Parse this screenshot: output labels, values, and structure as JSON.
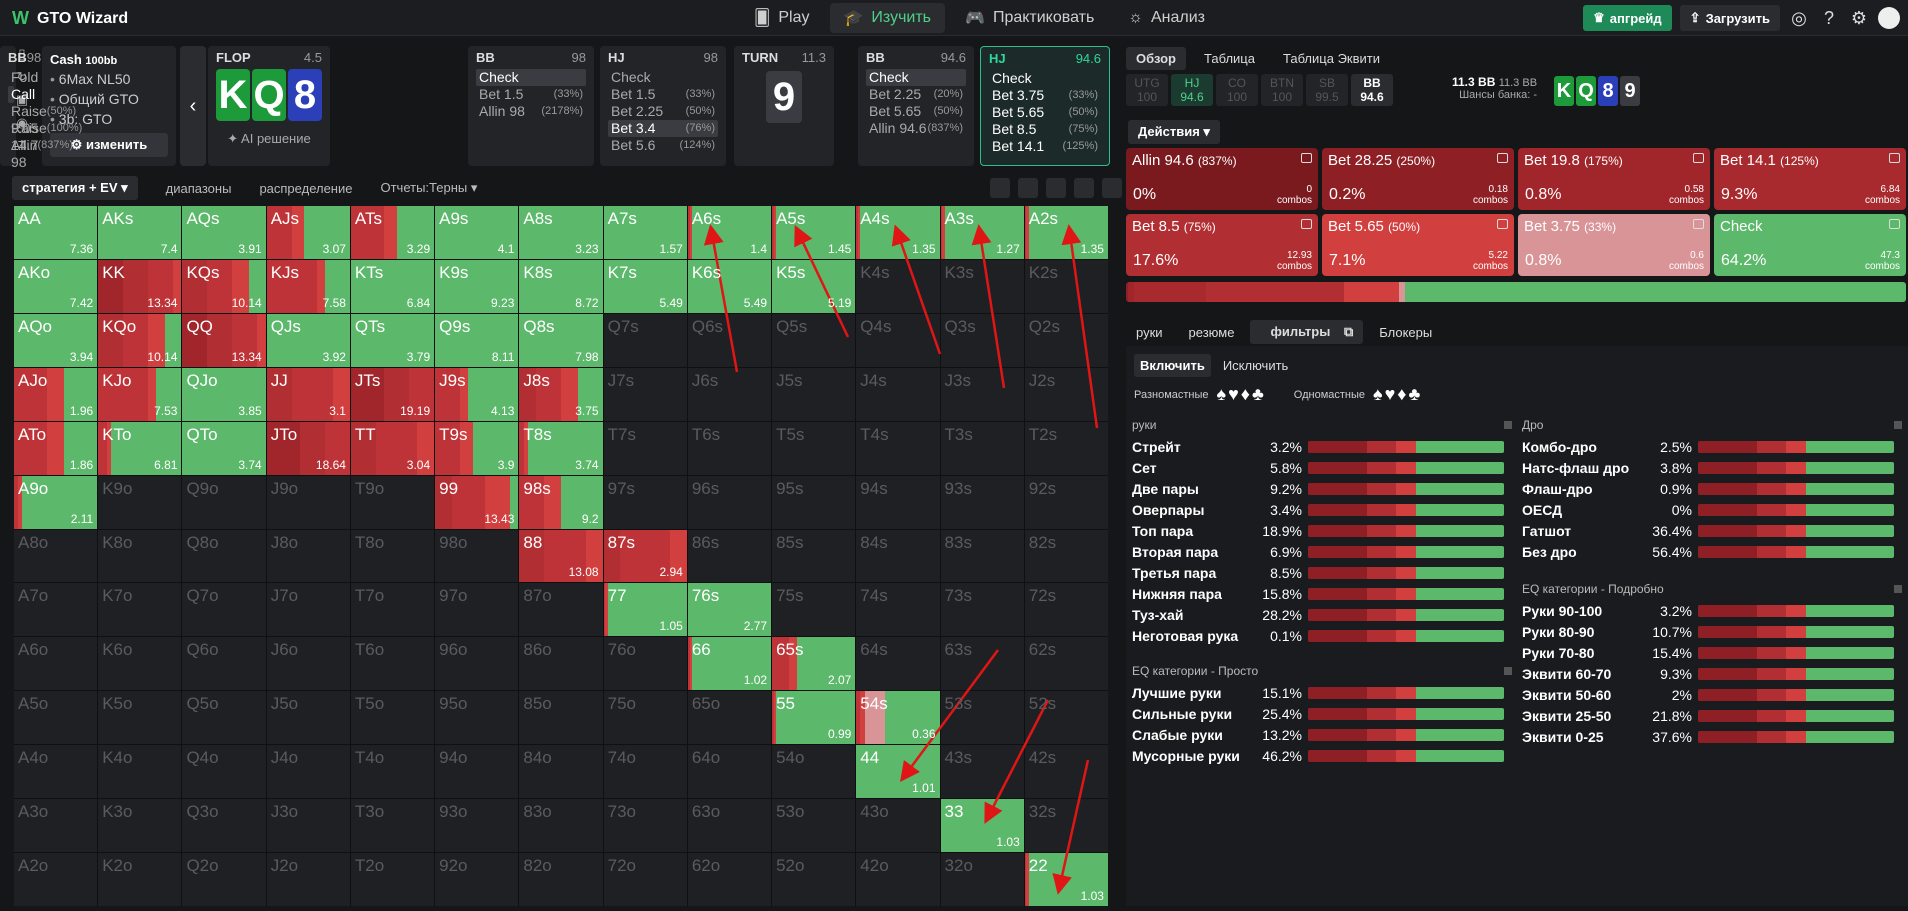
{
  "app": {
    "title": "GTO Wizard"
  },
  "nav": {
    "items": [
      "Play",
      "Изучить",
      "Практиковать",
      "Анализ"
    ]
  },
  "topright": {
    "upgrade": "апгрейд",
    "load": "Загрузить"
  },
  "info": {
    "title": "Cash",
    "stack": "100bb",
    "lines": [
      "6Max NL50",
      "Общий GTO",
      "3b: GTO"
    ],
    "change": "изменить",
    "ai": "AI решение"
  },
  "cards": [
    {
      "pos": "FLOP",
      "val": "4.5"
    },
    {
      "pos": "BB",
      "val": "98",
      "rows": [
        [
          "Check",
          ""
        ],
        [
          "Bet 1.5",
          "(33%)"
        ],
        [
          "Allin 98",
          "(2178%)"
        ]
      ],
      "sel": 0
    },
    {
      "pos": "HJ",
      "val": "98",
      "rows": [
        [
          "Check",
          ""
        ],
        [
          "Bet 1.5",
          "(33%)"
        ],
        [
          "Bet 2.25",
          "(50%)"
        ],
        [
          "Bet 3.4",
          "(76%)"
        ],
        [
          "Bet 5.6",
          "(124%)"
        ]
      ],
      "sel": 3
    },
    {
      "pos": "BB",
      "val": "98",
      "rows": [
        [
          "Fold",
          ""
        ],
        [
          "Call",
          ""
        ],
        [
          "Raise 9.05",
          "(50%)"
        ],
        [
          "Raise 14.7",
          "(100%)"
        ],
        [
          "Allin 98",
          "(837%)"
        ]
      ],
      "sel": 1
    },
    {
      "pos": "TURN",
      "val": "11.3"
    },
    {
      "pos": "BB",
      "val": "94.6",
      "rows": [
        [
          "Check",
          ""
        ],
        [
          "Bet 2.25",
          "(20%)"
        ],
        [
          "Bet 5.65",
          "(50%)"
        ],
        [
          "Allin 94.6",
          "(837%)"
        ]
      ],
      "sel": 0
    },
    {
      "pos": "HJ",
      "val": "94.6",
      "rows": [
        [
          "Check",
          ""
        ],
        [
          "Bet 3.75",
          "(33%)"
        ],
        [
          "Bet 5.65",
          "(50%)"
        ],
        [
          "Bet 8.5",
          "(75%)"
        ],
        [
          "Bet 14.1",
          "(125%)"
        ]
      ],
      "sel": -1
    }
  ],
  "flop_cards": [
    "K",
    "Q",
    "8"
  ],
  "turn_card": "9",
  "left_tabs": [
    "стратегия + EV",
    "диапазоны",
    "распределение",
    "Отчеты:Терны"
  ],
  "grid": [
    [
      "AA",
      "7.36"
    ],
    [
      "AKs",
      "7.4"
    ],
    [
      "AQs",
      "3.91"
    ],
    [
      "AJs",
      "3.07"
    ],
    [
      "ATs",
      "3.29"
    ],
    [
      "A9s",
      "4.1"
    ],
    [
      "A8s",
      "3.23"
    ],
    [
      "A7s",
      "1.57"
    ],
    [
      "A6s",
      "1.4"
    ],
    [
      "A5s",
      "1.45"
    ],
    [
      "A4s",
      "1.35"
    ],
    [
      "A3s",
      "1.27"
    ],
    [
      "A2s",
      "1.35"
    ],
    [
      "AKo",
      "7.42"
    ],
    [
      "KK",
      "13.34"
    ],
    [
      "KQs",
      "10.14"
    ],
    [
      "KJs",
      "7.58"
    ],
    [
      "KTs",
      "6.84"
    ],
    [
      "K9s",
      "9.23"
    ],
    [
      "K8s",
      "8.72"
    ],
    [
      "K7s",
      "5.49"
    ],
    [
      "K6s",
      "5.49"
    ],
    [
      "K5s",
      "5.19"
    ],
    [
      "K4s",
      ""
    ],
    [
      "K3s",
      ""
    ],
    [
      "K2s",
      ""
    ],
    [
      "AQo",
      "3.94"
    ],
    [
      "KQo",
      "10.14"
    ],
    [
      "QQ",
      "13.34"
    ],
    [
      "QJs",
      "3.92"
    ],
    [
      "QTs",
      "3.79"
    ],
    [
      "Q9s",
      "8.11"
    ],
    [
      "Q8s",
      "7.98"
    ],
    [
      "Q7s",
      ""
    ],
    [
      "Q6s",
      ""
    ],
    [
      "Q5s",
      ""
    ],
    [
      "Q4s",
      ""
    ],
    [
      "Q3s",
      ""
    ],
    [
      "Q2s",
      ""
    ],
    [
      "AJo",
      "1.96"
    ],
    [
      "KJo",
      "7.53"
    ],
    [
      "QJo",
      "3.85"
    ],
    [
      "JJ",
      "3.1"
    ],
    [
      "JTs",
      "19.19"
    ],
    [
      "J9s",
      "4.13"
    ],
    [
      "J8s",
      "3.75"
    ],
    [
      "J7s",
      ""
    ],
    [
      "J6s",
      ""
    ],
    [
      "J5s",
      ""
    ],
    [
      "J4s",
      ""
    ],
    [
      "J3s",
      ""
    ],
    [
      "J2s",
      ""
    ],
    [
      "ATo",
      "1.86"
    ],
    [
      "KTo",
      "6.81"
    ],
    [
      "QTo",
      "3.74"
    ],
    [
      "JTo",
      "18.64"
    ],
    [
      "TT",
      "3.04"
    ],
    [
      "T9s",
      "3.9"
    ],
    [
      "T8s",
      "3.74"
    ],
    [
      "T7s",
      ""
    ],
    [
      "T6s",
      ""
    ],
    [
      "T5s",
      ""
    ],
    [
      "T4s",
      ""
    ],
    [
      "T3s",
      ""
    ],
    [
      "T2s",
      ""
    ],
    [
      "A9o",
      "2.11"
    ],
    [
      "K9o",
      ""
    ],
    [
      "Q9o",
      ""
    ],
    [
      "J9o",
      ""
    ],
    [
      "T9o",
      ""
    ],
    [
      "99",
      "13.43"
    ],
    [
      "98s",
      "9.2"
    ],
    [
      "97s",
      ""
    ],
    [
      "96s",
      ""
    ],
    [
      "95s",
      ""
    ],
    [
      "94s",
      ""
    ],
    [
      "93s",
      ""
    ],
    [
      "92s",
      ""
    ],
    [
      "A8o",
      ""
    ],
    [
      "K8o",
      ""
    ],
    [
      "Q8o",
      ""
    ],
    [
      "J8o",
      ""
    ],
    [
      "T8o",
      ""
    ],
    [
      "98o",
      ""
    ],
    [
      "88",
      "13.08"
    ],
    [
      "87s",
      "2.94"
    ],
    [
      "86s",
      ""
    ],
    [
      "85s",
      ""
    ],
    [
      "84s",
      ""
    ],
    [
      "83s",
      ""
    ],
    [
      "82s",
      ""
    ],
    [
      "A7o",
      ""
    ],
    [
      "K7o",
      ""
    ],
    [
      "Q7o",
      ""
    ],
    [
      "J7o",
      ""
    ],
    [
      "T7o",
      ""
    ],
    [
      "97o",
      ""
    ],
    [
      "87o",
      ""
    ],
    [
      "77",
      "1.05"
    ],
    [
      "76s",
      "2.77"
    ],
    [
      "75s",
      ""
    ],
    [
      "74s",
      ""
    ],
    [
      "73s",
      ""
    ],
    [
      "72s",
      ""
    ],
    [
      "A6o",
      ""
    ],
    [
      "K6o",
      ""
    ],
    [
      "Q6o",
      ""
    ],
    [
      "J6o",
      ""
    ],
    [
      "T6o",
      ""
    ],
    [
      "96o",
      ""
    ],
    [
      "86o",
      ""
    ],
    [
      "76o",
      ""
    ],
    [
      "66",
      "1.02"
    ],
    [
      "65s",
      "2.07"
    ],
    [
      "64s",
      ""
    ],
    [
      "63s",
      ""
    ],
    [
      "62s",
      ""
    ],
    [
      "A5o",
      ""
    ],
    [
      "K5o",
      ""
    ],
    [
      "Q5o",
      ""
    ],
    [
      "J5o",
      ""
    ],
    [
      "T5o",
      ""
    ],
    [
      "95o",
      ""
    ],
    [
      "85o",
      ""
    ],
    [
      "75o",
      ""
    ],
    [
      "65o",
      ""
    ],
    [
      "55",
      "0.99"
    ],
    [
      "54s",
      "0.36"
    ],
    [
      "53s",
      ""
    ],
    [
      "52s",
      ""
    ],
    [
      "A4o",
      ""
    ],
    [
      "K4o",
      ""
    ],
    [
      "Q4o",
      ""
    ],
    [
      "J4o",
      ""
    ],
    [
      "T4o",
      ""
    ],
    [
      "94o",
      ""
    ],
    [
      "84o",
      ""
    ],
    [
      "74o",
      ""
    ],
    [
      "64o",
      ""
    ],
    [
      "54o",
      ""
    ],
    [
      "44",
      "1.01"
    ],
    [
      "43s",
      ""
    ],
    [
      "42s",
      ""
    ],
    [
      "A3o",
      ""
    ],
    [
      "K3o",
      ""
    ],
    [
      "Q3o",
      ""
    ],
    [
      "J3o",
      ""
    ],
    [
      "T3o",
      ""
    ],
    [
      "93o",
      ""
    ],
    [
      "83o",
      ""
    ],
    [
      "73o",
      ""
    ],
    [
      "63o",
      ""
    ],
    [
      "53o",
      ""
    ],
    [
      "43o",
      ""
    ],
    [
      "33",
      "1.03"
    ],
    [
      "32s",
      ""
    ],
    [
      "A2o",
      ""
    ],
    [
      "K2o",
      ""
    ],
    [
      "Q2o",
      ""
    ],
    [
      "J2o",
      ""
    ],
    [
      "T2o",
      ""
    ],
    [
      "92o",
      ""
    ],
    [
      "82o",
      ""
    ],
    [
      "72o",
      ""
    ],
    [
      "62o",
      ""
    ],
    [
      "52o",
      ""
    ],
    [
      "42o",
      ""
    ],
    [
      "32o",
      ""
    ],
    [
      "22",
      "1.03"
    ]
  ],
  "cell_mix": {
    "AA": [
      0,
      0,
      0,
      0,
      0,
      0,
      0,
      1
    ],
    "AKs": [
      0,
      0,
      0,
      0,
      0,
      0,
      0,
      1
    ],
    "AQs": [
      0,
      0,
      0,
      0,
      0,
      0,
      0,
      1
    ],
    "AJs": [
      0,
      0,
      0,
      0,
      0.3,
      0.15,
      0,
      0.55
    ],
    "ATs": [
      0,
      0,
      0,
      0,
      0.4,
      0.15,
      0,
      0.45
    ],
    "A9s": [
      0,
      0,
      0,
      0,
      0,
      0,
      0,
      1
    ],
    "A8s": [
      0,
      0,
      0,
      0,
      0,
      0,
      0,
      1
    ],
    "A7s": [
      0,
      0,
      0,
      0,
      0,
      0,
      0,
      1
    ],
    "A6s": [
      0,
      0,
      0,
      0,
      0.02,
      0.03,
      0,
      0.95
    ],
    "A5s": [
      0,
      0,
      0,
      0,
      0.02,
      0.03,
      0,
      0.95
    ],
    "A4s": [
      0,
      0,
      0,
      0,
      0.02,
      0.03,
      0,
      0.95
    ],
    "A3s": [
      0,
      0,
      0,
      0,
      0.02,
      0.03,
      0,
      0.95
    ],
    "A2s": [
      0,
      0,
      0,
      0,
      0.02,
      0.03,
      0,
      0.95
    ],
    "AKo": [
      0,
      0,
      0,
      0,
      0,
      0,
      0,
      1
    ],
    "KK": [
      0,
      0,
      0.3,
      0.3,
      0.3,
      0.1,
      0,
      0
    ],
    "KQs": [
      0,
      0,
      0,
      0.3,
      0.3,
      0.2,
      0,
      0.2
    ],
    "KJs": [
      0,
      0,
      0,
      0,
      0.6,
      0.1,
      0,
      0.3
    ],
    "KTs": [
      0,
      0,
      0,
      0,
      0,
      0,
      0,
      1
    ],
    "K9s": [
      0,
      0,
      0,
      0,
      0,
      0,
      0,
      1
    ],
    "K8s": [
      0,
      0,
      0,
      0,
      0,
      0,
      0,
      1
    ],
    "K7s": [
      0,
      0,
      0,
      0,
      0,
      0,
      0,
      1
    ],
    "K6s": [
      0,
      0,
      0,
      0,
      0,
      0,
      0,
      1
    ],
    "K5s": [
      0,
      0,
      0,
      0,
      0,
      0,
      0,
      1
    ],
    "AQo": [
      0,
      0,
      0,
      0,
      0,
      0,
      0,
      1
    ],
    "KQo": [
      0,
      0,
      0,
      0.3,
      0.3,
      0.2,
      0,
      0.2
    ],
    "QQ": [
      0,
      0,
      0.3,
      0.3,
      0.3,
      0.1,
      0,
      0
    ],
    "QJs": [
      0,
      0,
      0,
      0,
      0,
      0,
      0,
      1
    ],
    "QTs": [
      0,
      0,
      0,
      0,
      0,
      0,
      0,
      1
    ],
    "Q9s": [
      0,
      0,
      0,
      0,
      0,
      0,
      0,
      1
    ],
    "Q8s": [
      0,
      0,
      0,
      0,
      0,
      0,
      0,
      1
    ],
    "AJo": [
      0,
      0,
      0,
      0,
      0.4,
      0.2,
      0,
      0.4
    ],
    "KJo": [
      0,
      0,
      0,
      0,
      0.6,
      0.1,
      0,
      0.3
    ],
    "QJo": [
      0,
      0,
      0,
      0,
      0,
      0,
      0,
      1
    ],
    "JJ": [
      0,
      0,
      0,
      0.3,
      0.5,
      0.2,
      0,
      0
    ],
    "JTs": [
      0,
      0,
      0.4,
      0.3,
      0.3,
      0,
      0,
      0
    ],
    "J9s": [
      0,
      0,
      0,
      0,
      0.3,
      0.1,
      0,
      0.6
    ],
    "J8s": [
      0,
      0,
      0,
      0.2,
      0.3,
      0.2,
      0,
      0.3
    ],
    "ATo": [
      0,
      0,
      0,
      0,
      0.4,
      0.2,
      0,
      0.4
    ],
    "KTo": [
      0,
      0,
      0,
      0,
      0.1,
      0.05,
      0,
      0.85
    ],
    "QTo": [
      0,
      0,
      0,
      0,
      0,
      0,
      0,
      1
    ],
    "JTo": [
      0,
      0,
      0.4,
      0.3,
      0.3,
      0,
      0,
      0
    ],
    "TT": [
      0,
      0,
      0,
      0.3,
      0.5,
      0.2,
      0,
      0
    ],
    "T9s": [
      0,
      0,
      0,
      0,
      0.3,
      0.15,
      0,
      0.55
    ],
    "T8s": [
      0,
      0,
      0,
      0,
      0.05,
      0.05,
      0,
      0.9
    ],
    "A9o": [
      0,
      0,
      0,
      0,
      0.05,
      0.05,
      0,
      0.9
    ],
    "99": [
      0,
      0,
      0,
      0.2,
      0.4,
      0.3,
      0,
      0.1
    ],
    "98s": [
      0,
      0,
      0,
      0,
      0.3,
      0.2,
      0,
      0.5
    ],
    "88": [
      0,
      0,
      0,
      0.3,
      0.5,
      0.2,
      0,
      0
    ],
    "87s": [
      0,
      0,
      0,
      0.2,
      0.6,
      0.2,
      0,
      0
    ],
    "77": [
      0,
      0,
      0,
      0,
      0.02,
      0.03,
      0,
      0.95
    ],
    "76s": [
      0,
      0,
      0,
      0,
      0,
      0,
      0,
      1
    ],
    "66": [
      0,
      0,
      0,
      0,
      0.02,
      0.03,
      0,
      0.95
    ],
    "65s": [
      0,
      0,
      0,
      0,
      0.2,
      0.1,
      0,
      0.7
    ],
    "55": [
      0,
      0,
      0,
      0,
      0.02,
      0.03,
      0,
      0.95
    ],
    "54s": [
      0,
      0,
      0,
      0,
      0.05,
      0.05,
      0.25,
      0.65
    ],
    "44": [
      0,
      0,
      0,
      0,
      0,
      0,
      0,
      1
    ],
    "33": [
      0,
      0,
      0,
      0,
      0,
      0,
      0,
      1
    ],
    "22": [
      0,
      0,
      0,
      0,
      0.02,
      0.03,
      0,
      0.95
    ]
  },
  "colors": {
    "allin": "#7a1a1f",
    "b28": "#8e1f24",
    "b19": "#a0262b",
    "b14": "#b12e32",
    "b85": "#bd3337",
    "b565": "#d13f3f",
    "b375": "#d99497",
    "check": "#5cb86a",
    "empty": "#1f2023"
  },
  "right": {
    "tabs": [
      "Обзор",
      "Таблица",
      "Таблица Эквити"
    ],
    "positions": [
      [
        "UTG",
        "100"
      ],
      [
        "HJ",
        "94.6"
      ],
      [
        "CO",
        "100"
      ],
      [
        "BTN",
        "100"
      ],
      [
        "SB",
        "99.5"
      ],
      [
        "BB",
        "94.6"
      ]
    ],
    "pot": "11.3 BB",
    "pot2": "11.3 BB",
    "pot_label": "Шансы банка: -",
    "board": [
      "K",
      "Q",
      "8",
      "9"
    ],
    "actions_label": "Действия",
    "actions": [
      {
        "name": "Allin 94.6",
        "pct": "(837%)",
        "freq": "0%",
        "combos": "0",
        "color": "#7a1a1f"
      },
      {
        "name": "Bet 28.25",
        "pct": "(250%)",
        "freq": "0.2%",
        "combos": "0.18",
        "color": "#8e1f24"
      },
      {
        "name": "Bet 19.8",
        "pct": "(175%)",
        "freq": "0.8%",
        "combos": "0.58",
        "color": "#a0262b"
      },
      {
        "name": "Bet 14.1",
        "pct": "(125%)",
        "freq": "9.3%",
        "combos": "6.84",
        "color": "#a82a2e"
      },
      {
        "name": "Bet 8.5",
        "pct": "(75%)",
        "freq": "17.6%",
        "combos": "12.93",
        "color": "#b12e32"
      },
      {
        "name": "Bet 5.65",
        "pct": "(50%)",
        "freq": "7.1%",
        "combos": "5.22",
        "color": "#d13f3f"
      },
      {
        "name": "Bet 3.75",
        "pct": "(33%)",
        "freq": "0.8%",
        "combos": "0.6",
        "color": "#d99497"
      },
      {
        "name": "Check",
        "pct": "",
        "freq": "64.2%",
        "combos": "47.3",
        "color": "#5cb86a"
      }
    ],
    "combos_label": "combos",
    "subtabs": [
      "руки",
      "резюме",
      "фильтры",
      "Блокеры"
    ],
    "include": "Включить",
    "exclude": "Исключить",
    "suit_multi": "Разномастные",
    "suit_single": "Одномастные",
    "hands_title": "руки",
    "hands": [
      [
        "Стрейт",
        "3.2%"
      ],
      [
        "Сет",
        "5.8%"
      ],
      [
        "Две пары",
        "9.2%"
      ],
      [
        "Оверпары",
        "3.4%"
      ],
      [
        "Топ пара",
        "18.9%"
      ],
      [
        "Вторая пара",
        "6.9%"
      ],
      [
        "Третья пара",
        "8.5%"
      ],
      [
        "Нижняя пара",
        "15.8%"
      ],
      [
        "Туз-хай",
        "28.2%"
      ],
      [
        "Неготовая рука",
        "0.1%"
      ]
    ],
    "eq_simple_title": "EQ категории - Просто",
    "eq_simple": [
      [
        "Лучшие руки",
        "15.1%"
      ],
      [
        "Сильные руки",
        "25.4%"
      ],
      [
        "Слабые руки",
        "13.2%"
      ],
      [
        "Мусорные руки",
        "46.2%"
      ]
    ],
    "draws_title": "Дро",
    "draws": [
      [
        "Комбо-дро",
        "2.5%"
      ],
      [
        "Натс-флаш дро",
        "3.8%"
      ],
      [
        "Флаш-дро",
        "0.9%"
      ],
      [
        "ОЕСД",
        "0%"
      ],
      [
        "Гатшот",
        "36.4%"
      ],
      [
        "Без дро",
        "56.4%"
      ]
    ],
    "eq_detail_title": "EQ категории - Подробно",
    "eq_detail": [
      [
        "Руки 90-100",
        "3.2%"
      ],
      [
        "Руки 80-90",
        "10.7%"
      ],
      [
        "Руки 70-80",
        "15.4%"
      ],
      [
        "Эквити 60-70",
        "9.3%"
      ],
      [
        "Эквити 50-60",
        "2%"
      ],
      [
        "Эквити 25-50",
        "21.8%"
      ],
      [
        "Эквити 0-25",
        "37.6%"
      ]
    ]
  }
}
